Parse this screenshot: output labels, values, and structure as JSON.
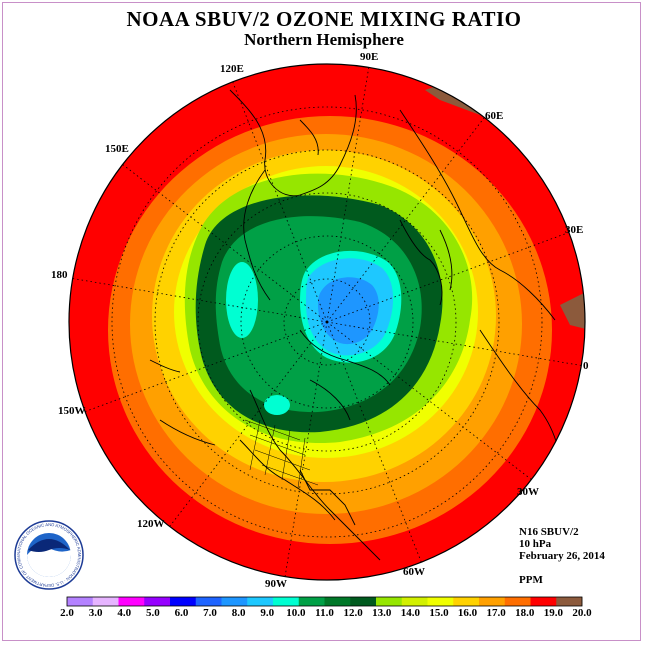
{
  "header": {
    "title": "NOAA SBUV/2 OZONE MIXING RATIO",
    "subtitle": "Northern Hemisphere"
  },
  "longitude_labels": [
    "90E",
    "60E",
    "30E",
    "0",
    "30W",
    "60W",
    "90W",
    "120W",
    "150W",
    "180",
    "150E",
    "120E"
  ],
  "info": {
    "instrument": "N16 SBUV/2",
    "level": "10 hPa",
    "date": "February 26, 2014",
    "units": "PPM"
  },
  "colorbar": {
    "ticks": [
      "2.0",
      "3.0",
      "4.0",
      "5.0",
      "6.0",
      "7.0",
      "8.0",
      "9.0",
      "10.0",
      "11.0",
      "12.0",
      "13.0",
      "14.0",
      "15.0",
      "16.0",
      "17.0",
      "18.0",
      "19.0",
      "20.0"
    ],
    "colors": [
      "#b482ff",
      "#e6b4ff",
      "#ff00ff",
      "#9600ff",
      "#0000ff",
      "#1e64ff",
      "#1e96ff",
      "#1ec8ff",
      "#00ffd2",
      "#00a046",
      "#007828",
      "#005a1e",
      "#96e600",
      "#d2f000",
      "#f0ff00",
      "#ffd200",
      "#ffa000",
      "#ff6e00",
      "#ff0000",
      "#8c5a3c"
    ]
  },
  "logo": {
    "text": "NOAA",
    "ring_text": "NATIONAL OCEANIC AND ATMOSPHERIC ADMINISTRATION · U.S. DEPARTMENT OF COMMERCE"
  }
}
